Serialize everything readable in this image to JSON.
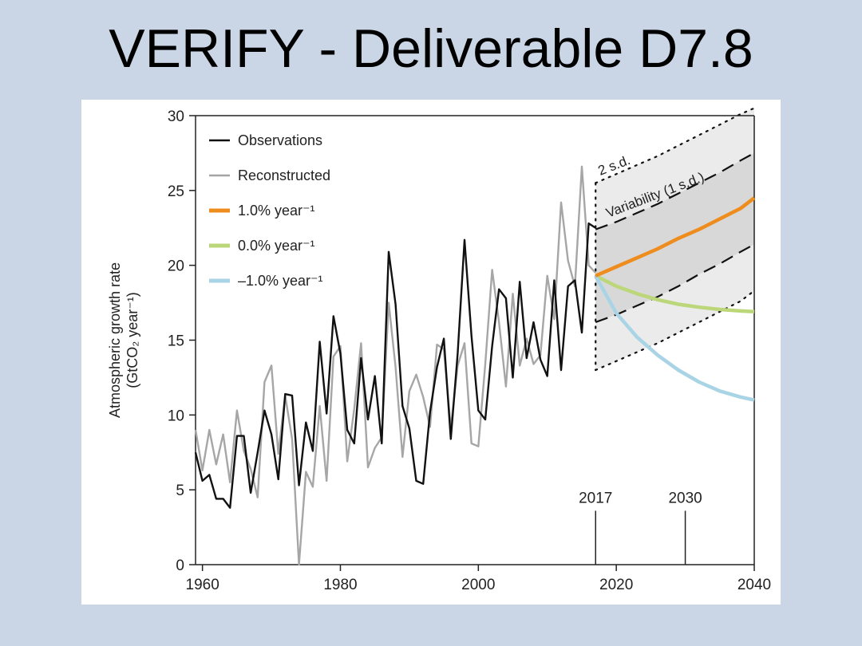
{
  "slide": {
    "title": "VERIFY - Deliverable D7.8"
  },
  "chart_data": {
    "type": "line",
    "ylabel_line1": "Atmospheric growth rate",
    "ylabel_line2": "(GtCO₂ year⁻¹)",
    "xlim": [
      1959,
      2040
    ],
    "ylim": [
      0,
      30
    ],
    "xticks": [
      1960,
      1980,
      2000,
      2020,
      2040
    ],
    "yticks": [
      0,
      5,
      10,
      15,
      20,
      25,
      30
    ],
    "legend_position": "top-left",
    "colors": {
      "observations": "#111111",
      "reconstructed": "#a6a6a6",
      "plus1": "#ef8c1e",
      "zero": "#bcd67a",
      "minus1": "#a9d4e6",
      "band_1sd": "#d8d8d8",
      "band_2sd": "#ebebeb"
    },
    "legend": [
      {
        "key": "observations",
        "label": "Observations"
      },
      {
        "key": "reconstructed",
        "label": "Reconstructed"
      },
      {
        "key": "plus1",
        "label": "1.0% year⁻¹"
      },
      {
        "key": "zero",
        "label": "0.0% year⁻¹"
      },
      {
        "key": "minus1",
        "label": "–1.0% year⁻¹"
      }
    ],
    "annotations": {
      "two_sd": "2 s.d.",
      "variability": "Variability (1 s.d.)",
      "marker_2017": "2017",
      "marker_2030": "2030"
    },
    "markers": [
      2017,
      2030
    ],
    "series": [
      {
        "name": "Observations",
        "x": [
          1959,
          1960,
          1961,
          1962,
          1963,
          1964,
          1965,
          1966,
          1967,
          1968,
          1969,
          1970,
          1971,
          1972,
          1973,
          1974,
          1975,
          1976,
          1977,
          1978,
          1979,
          1980,
          1981,
          1982,
          1983,
          1984,
          1985,
          1986,
          1987,
          1988,
          1989,
          1990,
          1991,
          1992,
          1993,
          1994,
          1995,
          1996,
          1997,
          1998,
          1999,
          2000,
          2001,
          2002,
          2003,
          2004,
          2005,
          2006,
          2007,
          2008,
          2009,
          2010,
          2011,
          2012,
          2013,
          2014,
          2015,
          2016,
          2017
        ],
        "y": [
          7.5,
          5.6,
          6.0,
          4.4,
          4.4,
          3.8,
          8.6,
          8.6,
          4.8,
          7.5,
          10.3,
          8.7,
          5.7,
          11.4,
          11.3,
          5.3,
          9.5,
          7.6,
          14.9,
          10.1,
          16.6,
          14.1,
          9.0,
          8.1,
          13.8,
          9.7,
          12.6,
          8.1,
          20.9,
          17.4,
          10.6,
          9.1,
          5.6,
          5.4,
          10.2,
          13.2,
          15.1,
          8.4,
          14.1,
          21.7,
          15.3,
          10.3,
          9.7,
          14.6,
          18.4,
          17.8,
          12.5,
          18.9,
          13.8,
          16.2,
          13.7,
          12.6,
          19.0,
          13.0,
          18.6,
          19.0,
          15.5,
          22.8,
          22.5
        ]
      },
      {
        "name": "Reconstructed",
        "x": [
          1959,
          1960,
          1961,
          1962,
          1963,
          1964,
          1965,
          1966,
          1967,
          1968,
          1969,
          1970,
          1971,
          1972,
          1973,
          1974,
          1975,
          1976,
          1977,
          1978,
          1979,
          1980,
          1981,
          1982,
          1983,
          1984,
          1985,
          1986,
          1987,
          1988,
          1989,
          1990,
          1991,
          1992,
          1993,
          1994,
          1995,
          1996,
          1997,
          1998,
          1999,
          2000,
          2001,
          2002,
          2003,
          2004,
          2005,
          2006,
          2007,
          2008,
          2009,
          2010,
          2011,
          2012,
          2013,
          2014,
          2015,
          2016,
          2017
        ],
        "y": [
          9.0,
          6.3,
          9.0,
          6.7,
          8.7,
          5.5,
          10.3,
          7.6,
          6.4,
          4.5,
          12.2,
          13.3,
          7.4,
          11.3,
          8.4,
          0.0,
          6.2,
          5.2,
          10.6,
          5.6,
          13.9,
          14.6,
          6.9,
          10.4,
          14.8,
          6.5,
          7.8,
          8.5,
          17.5,
          13.2,
          7.2,
          11.6,
          12.7,
          11.2,
          9.2,
          14.7,
          14.4,
          9.1,
          13.3,
          14.8,
          8.1,
          7.9,
          13.4,
          19.7,
          16.2,
          11.9,
          18.1,
          13.3,
          15.1,
          13.4,
          14.0,
          19.3,
          16.4,
          24.2,
          20.3,
          18.6,
          26.6,
          20.0,
          19.5
        ]
      },
      {
        "name": "1.0% year⁻¹",
        "x": [
          2017,
          2020,
          2023,
          2026,
          2029,
          2032,
          2035,
          2038,
          2040
        ],
        "y": [
          19.3,
          19.9,
          20.5,
          21.1,
          21.8,
          22.4,
          23.1,
          23.8,
          24.5
        ]
      },
      {
        "name": "0.0% year⁻¹",
        "x": [
          2017,
          2020,
          2023,
          2026,
          2029,
          2032,
          2035,
          2038,
          2040
        ],
        "y": [
          19.3,
          18.6,
          18.1,
          17.7,
          17.4,
          17.2,
          17.05,
          16.95,
          16.9
        ]
      },
      {
        "name": "–1.0% year⁻¹",
        "x": [
          2017,
          2020,
          2023,
          2026,
          2029,
          2032,
          2035,
          2038,
          2040
        ],
        "y": [
          19.3,
          16.8,
          15.2,
          14.0,
          13.0,
          12.2,
          11.6,
          11.2,
          11.0
        ]
      }
    ],
    "bands": {
      "x": [
        2017,
        2020,
        2023,
        2026,
        2029,
        2032,
        2035,
        2038,
        2040
      ],
      "sd1_upper": [
        22.4,
        22.9,
        23.5,
        24.1,
        24.8,
        25.5,
        26.2,
        27.0,
        27.5
      ],
      "sd1_lower": [
        16.2,
        16.7,
        17.3,
        17.9,
        18.6,
        19.4,
        20.1,
        20.9,
        21.4
      ],
      "sd2_upper": [
        25.5,
        26.1,
        26.7,
        27.3,
        28.0,
        28.7,
        29.4,
        30.1,
        30.5
      ],
      "sd2_lower": [
        13.0,
        13.6,
        14.2,
        14.8,
        15.5,
        16.2,
        16.9,
        17.6,
        18.3
      ]
    }
  }
}
